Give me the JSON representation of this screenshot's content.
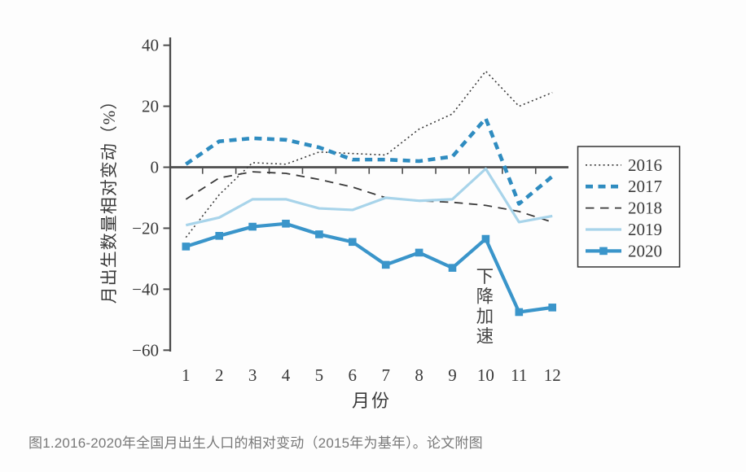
{
  "caption": "图1.2016-2020年全国月出生人口的相对变动（2015年为基年）。论文附图",
  "colors": {
    "background": "#fdfdfd",
    "axis": "#4c4c4c",
    "chart_text": "#3a3a3a",
    "caption_text": "#787878",
    "blue_2017": "#2f8cc0",
    "blue_2020": "#3a95ca",
    "light_blue_2019": "#a8d4ea",
    "dark_line": "#3a3a3a",
    "annotation_text": "#454545"
  },
  "chart_data": {
    "type": "line",
    "title": "",
    "xlabel": "月份",
    "ylabel": "月出生数量相对变动（%）",
    "x": [
      1,
      2,
      3,
      4,
      5,
      6,
      7,
      8,
      9,
      10,
      11,
      12
    ],
    "x_tick_labels": [
      "1",
      "2",
      "3",
      "4",
      "5",
      "6",
      "7",
      "8",
      "9",
      "10",
      "11",
      "12"
    ],
    "ylim": [
      -60,
      40
    ],
    "yticks": [
      {
        "v": 40,
        "label": "40"
      },
      {
        "v": 20,
        "label": "20"
      },
      {
        "v": 0,
        "label": "0"
      },
      {
        "v": -20,
        "label": "−20"
      },
      {
        "v": -40,
        "label": "−40"
      },
      {
        "v": -60,
        "label": "−60"
      }
    ],
    "grid": false,
    "legend_position": "right",
    "series": [
      {
        "name": "2016",
        "color": "#3a3a3a",
        "width": 1.6,
        "dash": "2 3.4",
        "marker": "none",
        "values": [
          -23,
          -9,
          1.5,
          1,
          5,
          4.5,
          4,
          12.5,
          17.5,
          31.5,
          20,
          24.5
        ]
      },
      {
        "name": "2017",
        "color": "#2f8cc0",
        "width": 4.6,
        "dash": "9 6.5",
        "marker": "none",
        "values": [
          1,
          8.5,
          9.5,
          9,
          6.5,
          2.5,
          2.5,
          2,
          3.5,
          16,
          -12,
          -3
        ]
      },
      {
        "name": "2018",
        "color": "#3a3a3a",
        "width": 1.8,
        "dash": "10.5 7.5",
        "marker": "none",
        "values": [
          -10.5,
          -3.5,
          -1.5,
          -2,
          -4,
          -6.5,
          -10,
          -11,
          -11.5,
          -12.5,
          -14.5,
          -18
        ]
      },
      {
        "name": "2019",
        "color": "#a8d4ea",
        "width": 3.2,
        "dash": "",
        "marker": "none",
        "values": [
          -19,
          -16.5,
          -10.5,
          -10.5,
          -13.5,
          -14,
          -10,
          -11,
          -10.5,
          -0.5,
          -18,
          -16
        ]
      },
      {
        "name": "2020",
        "color": "#3a95ca",
        "width": 4.2,
        "dash": "",
        "marker": "square",
        "values": [
          -26,
          -22.5,
          -19.5,
          -18.5,
          -22,
          -24.5,
          -32,
          -28,
          -33,
          -23.5,
          -47.5,
          -46
        ]
      }
    ],
    "annotation": {
      "text": "下降加速",
      "month": 10,
      "start_value": -34
    },
    "legend_entries": [
      "2016",
      "2017",
      "2018",
      "2019",
      "2020"
    ]
  }
}
